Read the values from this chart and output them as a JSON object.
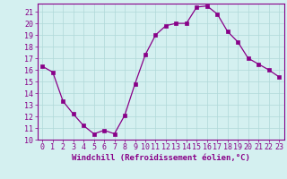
{
  "x": [
    0,
    1,
    2,
    3,
    4,
    5,
    6,
    7,
    8,
    9,
    10,
    11,
    12,
    13,
    14,
    15,
    16,
    17,
    18,
    19,
    20,
    21,
    22,
    23
  ],
  "y": [
    16.3,
    15.8,
    13.3,
    12.2,
    11.2,
    10.5,
    10.8,
    10.5,
    12.1,
    14.8,
    17.3,
    19.0,
    19.8,
    20.0,
    20.0,
    21.4,
    21.5,
    20.8,
    19.3,
    18.4,
    17.0,
    16.5,
    16.0,
    15.4
  ],
  "line_color": "#880088",
  "marker": "s",
  "marker_size": 2.2,
  "bg_color": "#d4f0f0",
  "grid_color": "#b0d8d8",
  "xlabel": "Windchill (Refroidissement éolien,°C)",
  "ylim": [
    10,
    21.7
  ],
  "xlim": [
    -0.5,
    23.5
  ],
  "yticks": [
    10,
    11,
    12,
    13,
    14,
    15,
    16,
    17,
    18,
    19,
    20,
    21
  ],
  "xticks": [
    0,
    1,
    2,
    3,
    4,
    5,
    6,
    7,
    8,
    9,
    10,
    11,
    12,
    13,
    14,
    15,
    16,
    17,
    18,
    19,
    20,
    21,
    22,
    23
  ],
  "tick_color": "#880088",
  "label_color": "#880088",
  "label_fontsize": 6.5,
  "tick_fontsize": 6.0
}
